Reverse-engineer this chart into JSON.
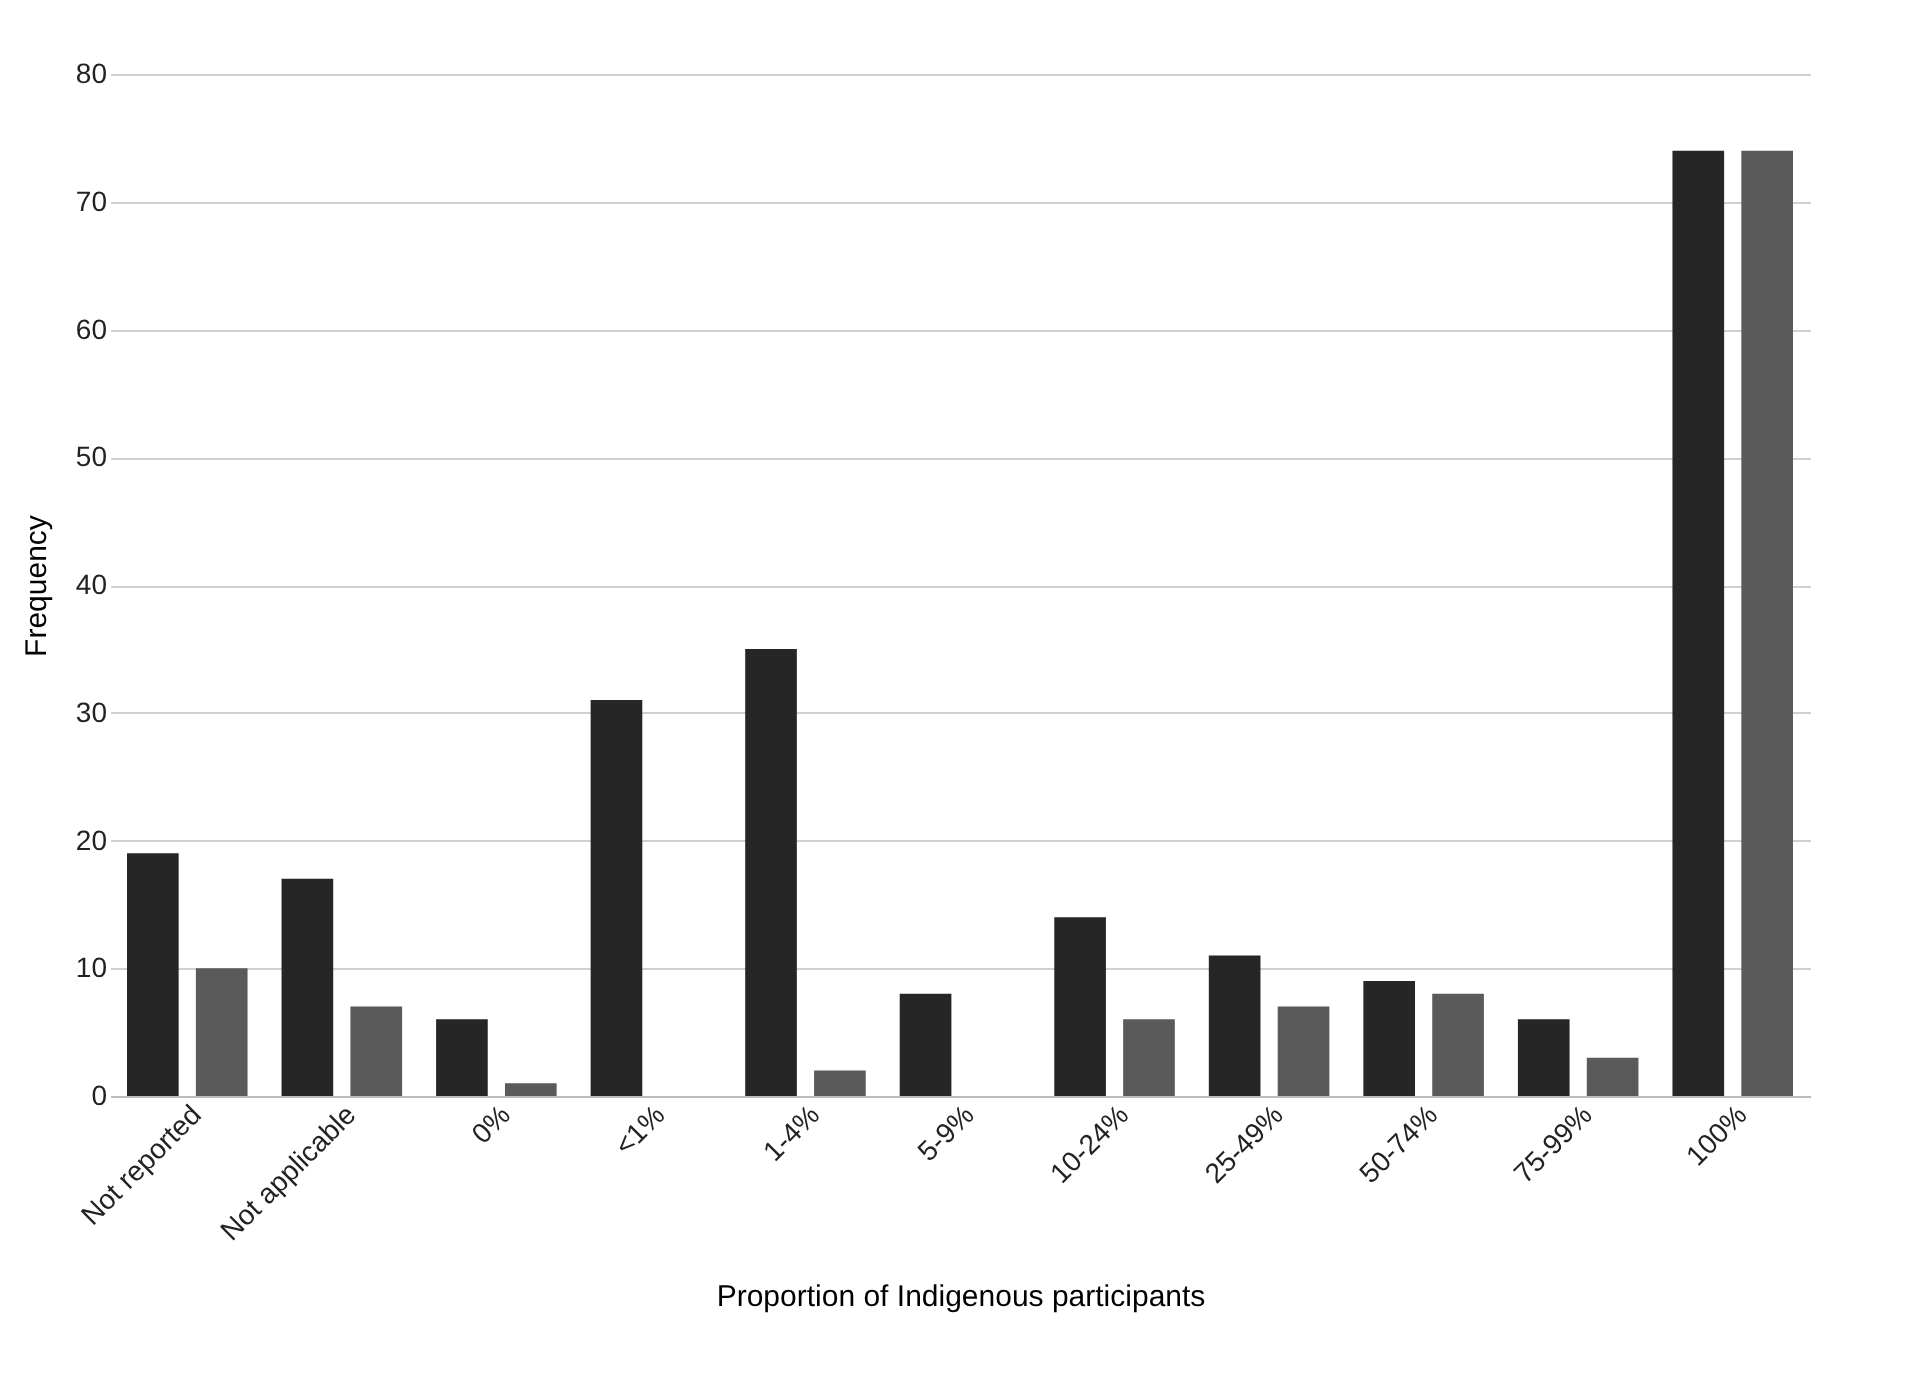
{
  "chart_data": {
    "type": "bar",
    "xlabel": "Proportion of Indigenous participants",
    "ylabel": "Frequency",
    "categories": [
      "Not reported",
      "Not applicable",
      "0%",
      "<1%",
      "1-4%",
      "5-9%",
      "10-24%",
      "25-49%",
      "50-74%",
      "75-99%",
      "100%"
    ],
    "series": [
      {
        "color": "#262626",
        "values": [
          19,
          17,
          6,
          31,
          35,
          8,
          14,
          11,
          9,
          6,
          74
        ]
      },
      {
        "color": "#5a5a5a",
        "values": [
          10,
          7,
          1,
          0,
          2,
          0,
          6,
          7,
          8,
          3,
          74
        ]
      }
    ],
    "ylim": [
      0,
      80
    ],
    "yticks": [
      0,
      10,
      20,
      30,
      40,
      50,
      60,
      70,
      80
    ],
    "grid": "y",
    "legend": false
  }
}
